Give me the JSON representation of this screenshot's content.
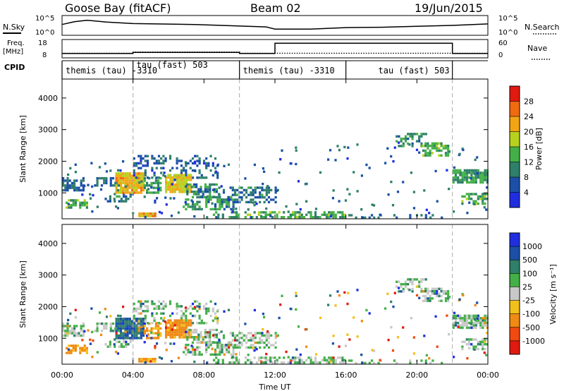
{
  "header": {
    "site": "Goose Bay (fitACF)",
    "beam": "Beam 02",
    "date": "19/Jun/2015"
  },
  "panels": {
    "nsky_label": "N.Sky",
    "nsky_ticks": [
      "10^5",
      "10^0"
    ],
    "nsearch_label": "N.Search",
    "nsearch_ticks": [
      "10^5",
      "10^0"
    ],
    "freq_label_line1": "Freq.",
    "freq_label_line2": "[MHz]",
    "freq_ticks": [
      "18",
      "8"
    ],
    "nave_label": "Nave",
    "nave_ticks": [
      "60",
      "0"
    ],
    "cpid_label": "CPID",
    "cpid_segments": [
      {
        "label": "themis (tau) -3310",
        "start_hour": 0,
        "end_hour": 4
      },
      {
        "label": "tau (fast) 503",
        "start_hour": 4,
        "end_hour": 10
      },
      {
        "label": "themis (tau) -3310",
        "start_hour": 10,
        "end_hour": 16
      },
      {
        "label": "tau (fast) 503",
        "start_hour": 16,
        "end_hour": 22
      }
    ]
  },
  "power_panel": {
    "ylabel": "Slant Range [km]",
    "yticks": [
      "1000",
      "2000",
      "3000",
      "4000"
    ],
    "colorbar_label": "Power [dB]",
    "colorbar_ticks": [
      "4",
      "8",
      "12",
      "16",
      "20",
      "24",
      "28"
    ],
    "colors": [
      "#1f2fe0",
      "#1b4fa8",
      "#2f7f6a",
      "#43b047",
      "#b8d11f",
      "#f2a514",
      "#f06a10",
      "#e01a10"
    ]
  },
  "velocity_panel": {
    "ylabel": "Slant Range [km]",
    "yticks": [
      "1000",
      "2000",
      "3000",
      "4000"
    ],
    "colorbar_label": "Velocity [m s⁻¹]",
    "colorbar_ticks": [
      "1000",
      "500",
      "100",
      "25",
      "-25",
      "-100",
      "-500",
      "-1000"
    ],
    "colors": [
      "#1f2fe0",
      "#1b4fa8",
      "#2f7f6a",
      "#43b047",
      "#c8c8c8",
      "#f2c01a",
      "#f08a14",
      "#f04a10",
      "#e01a10"
    ]
  },
  "x_axis": {
    "label": "Time UT",
    "ticks": [
      "00:00",
      "04:00",
      "08:00",
      "12:00",
      "16:00",
      "20:00",
      "00:00"
    ]
  },
  "chart_data": {
    "type": "heatmap",
    "x_unit": "hour UT",
    "x_range": [
      0,
      24
    ],
    "y_unit": "km",
    "y_range": [
      180,
      4600
    ],
    "reference_lines_hour": [
      4,
      10,
      22
    ],
    "nsky_trace": [
      [
        0,
        0.55
      ],
      [
        0.7,
        0.7
      ],
      [
        1.4,
        0.78
      ],
      [
        2.5,
        0.68
      ],
      [
        4,
        0.6
      ],
      [
        7.5,
        0.55
      ],
      [
        9,
        0.5
      ],
      [
        11.5,
        0.42
      ],
      [
        12,
        0.3
      ],
      [
        14,
        0.3
      ],
      [
        16,
        0.38
      ],
      [
        18,
        0.4
      ],
      [
        20,
        0.45
      ],
      [
        22,
        0.5
      ],
      [
        24,
        0.58
      ]
    ],
    "freq_mhz": [
      [
        0,
        10.2
      ],
      [
        4,
        10.2
      ],
      [
        4,
        10.8
      ],
      [
        10,
        10.8
      ],
      [
        10,
        10.2
      ],
      [
        12,
        10.2
      ],
      [
        12,
        16.2
      ],
      [
        22,
        16.2
      ],
      [
        22,
        10.2
      ],
      [
        24,
        10.2
      ]
    ],
    "nave": [
      [
        0,
        14
      ],
      [
        4,
        14
      ],
      [
        4,
        18
      ],
      [
        10,
        18
      ],
      [
        10,
        14
      ],
      [
        24,
        14
      ]
    ],
    "scatter_regions": [
      {
        "start_hour": 0.0,
        "end_hour": 1.2,
        "range_min_km": 1100,
        "range_max_km": 1500,
        "power_db": 8,
        "velocity": 25,
        "density": 0.7
      },
      {
        "start_hour": 0.2,
        "end_hour": 1.4,
        "range_min_km": 550,
        "range_max_km": 800,
        "power_db": 14,
        "velocity": -100,
        "density": 0.5
      },
      {
        "start_hour": 1.8,
        "end_hour": 3.3,
        "range_min_km": 1200,
        "range_max_km": 1500,
        "power_db": 8,
        "velocity": 25,
        "density": 0.45
      },
      {
        "start_hour": 2.4,
        "end_hour": 4.0,
        "range_min_km": 700,
        "range_max_km": 1000,
        "power_db": 9,
        "velocity": 25,
        "density": 0.35
      },
      {
        "start_hour": 3.0,
        "end_hour": 4.6,
        "range_min_km": 1000,
        "range_max_km": 1650,
        "power_db": 21,
        "velocity": 100,
        "density": 0.9
      },
      {
        "start_hour": 4.6,
        "end_hour": 5.5,
        "range_min_km": 1000,
        "range_max_km": 1500,
        "power_db": 12,
        "velocity": -100,
        "density": 0.55
      },
      {
        "start_hour": 4.0,
        "end_hour": 8.8,
        "range_min_km": 1500,
        "range_max_km": 2200,
        "power_db": 7,
        "velocity": 25,
        "density": 0.35
      },
      {
        "start_hour": 5.8,
        "end_hour": 7.3,
        "range_min_km": 1000,
        "range_max_km": 1600,
        "power_db": 20,
        "velocity": -120,
        "density": 0.9
      },
      {
        "start_hour": 7.0,
        "end_hour": 8.8,
        "range_min_km": 900,
        "range_max_km": 1300,
        "power_db": 10,
        "velocity": 25,
        "density": 0.45
      },
      {
        "start_hour": 6.8,
        "end_hour": 9.6,
        "range_min_km": 500,
        "range_max_km": 900,
        "power_db": 11,
        "velocity": 25,
        "density": 0.55
      },
      {
        "start_hour": 8.8,
        "end_hour": 12.2,
        "range_min_km": 700,
        "range_max_km": 1200,
        "power_db": 9,
        "velocity": 25,
        "density": 0.5
      },
      {
        "start_hour": 4.3,
        "end_hour": 5.3,
        "range_min_km": 280,
        "range_max_km": 380,
        "power_db": 22,
        "velocity": -100,
        "density": 0.9
      },
      {
        "start_hour": 8.5,
        "end_hour": 16.0,
        "range_min_km": 230,
        "range_max_km": 420,
        "power_db": 13,
        "velocity": 25,
        "density": 0.45
      },
      {
        "start_hour": 16.0,
        "end_hour": 21.5,
        "range_min_km": 230,
        "range_max_km": 330,
        "power_db": 8,
        "velocity": 25,
        "density": 0.25
      },
      {
        "start_hour": 18.8,
        "end_hour": 20.5,
        "range_min_km": 2500,
        "range_max_km": 2900,
        "power_db": 10,
        "velocity": 25,
        "density": 0.45
      },
      {
        "start_hour": 20.3,
        "end_hour": 21.8,
        "range_min_km": 2200,
        "range_max_km": 2600,
        "power_db": 14,
        "velocity": 25,
        "density": 0.65
      },
      {
        "start_hour": 22.0,
        "end_hour": 24.0,
        "range_min_km": 1300,
        "range_max_km": 1750,
        "power_db": 12,
        "velocity": 25,
        "density": 0.85
      },
      {
        "start_hour": 22.5,
        "end_hour": 24.0,
        "range_min_km": 650,
        "range_max_km": 1000,
        "power_db": 13,
        "velocity": 25,
        "density": 0.5
      }
    ]
  }
}
